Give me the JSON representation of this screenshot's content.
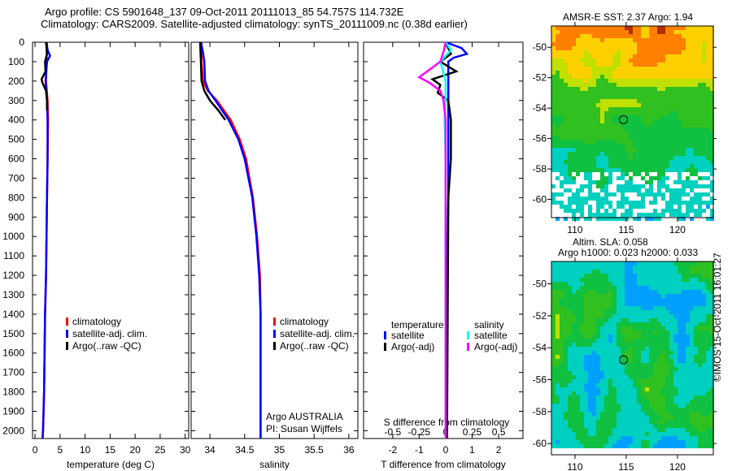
{
  "header": {
    "line1": "Argo profile: CS 5901648_137 09-Oct-2011 20111013_85 54.757S 114.732E",
    "line2": "Climatology: CARS2009. Satellite-adjusted climatology: synTS_20111009.nc (0.38d earlier)"
  },
  "colors": {
    "climatology": "#ff0000",
    "satellite": "#0000ff",
    "argo": "#000000",
    "sal_satellite": "#00ffff",
    "sal_argo": "#ff00ff"
  },
  "chart_data": [
    {
      "type": "line",
      "title": "",
      "xlabel": "temperature (deg C)",
      "ylabel": "",
      "xlim": [
        -0.5,
        30.7
      ],
      "ylim": [
        2040,
        0
      ],
      "xticks": [
        0,
        5,
        10,
        15,
        20,
        25,
        30
      ],
      "yticks": [
        0,
        100,
        200,
        300,
        400,
        500,
        600,
        700,
        800,
        900,
        1000,
        1100,
        1200,
        1300,
        1400,
        1500,
        1600,
        1700,
        1800,
        1900,
        2000
      ],
      "legend": [
        "climatology",
        "satellite-adj. clim.",
        "Argo(..raw -QC)"
      ],
      "legend_placement": "center-right",
      "series": [
        {
          "name": "climatology",
          "depth": [
            0,
            100,
            200,
            300,
            400,
            600,
            800,
            1000,
            1200,
            1400,
            1600,
            1800,
            2000,
            2040
          ],
          "values": [
            2.4,
            2.3,
            2.2,
            2.5,
            2.6,
            2.5,
            2.4,
            2.3,
            2.2,
            2.0,
            1.9,
            1.8,
            1.6,
            1.5
          ]
        },
        {
          "name": "satellite-adj. clim.",
          "depth": [
            0,
            40,
            70,
            100,
            200,
            300,
            400,
            600,
            800,
            1000,
            1200,
            1400,
            1600,
            1800,
            2000,
            2040
          ],
          "values": [
            2.3,
            2.5,
            3.0,
            2.4,
            2.1,
            2.4,
            2.5,
            2.5,
            2.4,
            2.3,
            2.2,
            2.0,
            1.9,
            1.8,
            1.6,
            1.5
          ]
        },
        {
          "name": "Argo(..raw -QC)",
          "depth": [
            0,
            60,
            100,
            150,
            190,
            210,
            250,
            300,
            350
          ],
          "values": [
            2.2,
            2.4,
            2.0,
            2.1,
            1.3,
            1.5,
            2.2,
            2.4,
            2.4
          ]
        }
      ]
    },
    {
      "type": "line",
      "xlabel": "salinity",
      "xlim": [
        33.73,
        36.13
      ],
      "ylim": [
        2040,
        0
      ],
      "xticks": [
        34,
        34.5,
        35,
        35.5,
        36
      ],
      "legend": [
        "climatology",
        "satellite-adj. clim.",
        "Argo(..raw -QC)"
      ],
      "legend_placement": "center-right",
      "annotation": {
        "line1": "Argo AUSTRALIA",
        "line2": "PI: Susan Wijffels"
      },
      "series": [
        {
          "name": "climatology",
          "depth": [
            0,
            100,
            200,
            250,
            300,
            400,
            500,
            600,
            800,
            1000,
            1200,
            1400,
            2040
          ],
          "values": [
            33.88,
            33.88,
            33.9,
            33.97,
            34.1,
            34.3,
            34.43,
            34.52,
            34.62,
            34.68,
            34.72,
            34.73,
            34.73
          ]
        },
        {
          "name": "satellite-adj. clim.",
          "depth": [
            0,
            50,
            100,
            200,
            250,
            300,
            400,
            500,
            600,
            800,
            1000,
            1200,
            1400,
            2040
          ],
          "values": [
            33.87,
            33.9,
            33.92,
            33.93,
            33.98,
            34.08,
            34.27,
            34.41,
            34.5,
            34.61,
            34.67,
            34.71,
            34.73,
            34.73
          ]
        },
        {
          "name": "Argo(..raw -QC)",
          "depth": [
            0,
            100,
            200,
            250,
            300,
            350,
            400
          ],
          "values": [
            33.86,
            33.87,
            33.88,
            33.92,
            34.0,
            34.12,
            34.22
          ]
        }
      ]
    },
    {
      "type": "line",
      "xlabel": "T difference from climatology",
      "x2label": "S difference from climatology",
      "xlim": [
        -3.1,
        2.92
      ],
      "x2lim": [
        -0.775,
        0.73
      ],
      "ylim": [
        2040,
        0
      ],
      "xticks": [
        -2,
        -1,
        0,
        1,
        2
      ],
      "x2ticks": [
        -0.5,
        -0.25,
        0,
        0.25,
        0.5
      ],
      "legend_groups": [
        {
          "title": "temperature",
          "items": [
            "satellite",
            "Argo(-adj)"
          ]
        },
        {
          "title": "salinity",
          "items": [
            "satellite",
            "Argo(-adj)"
          ]
        }
      ],
      "series": [
        {
          "name": "T satellite",
          "depth": [
            0,
            30,
            60,
            80,
            100,
            150,
            200,
            300,
            500,
            800,
            1200,
            2040
          ],
          "values": [
            0,
            0.6,
            0.8,
            0.3,
            0.1,
            0.1,
            0.1,
            0.1,
            0.1,
            0.1,
            0.05,
            0.05
          ]
        },
        {
          "name": "T Argo(-adj)",
          "depth": [
            0,
            60,
            100,
            150,
            190,
            220,
            260,
            300,
            400,
            600,
            800,
            2040
          ],
          "values": [
            0,
            0.2,
            -0.2,
            0.4,
            -0.5,
            -0.2,
            -0.3,
            0.1,
            0.2,
            0.2,
            0.1,
            0.05
          ]
        },
        {
          "name": "S satellite",
          "depth": [
            0,
            40,
            100,
            200,
            300,
            400,
            600,
            1000,
            2040
          ],
          "values": [
            0,
            0.05,
            -0.05,
            0.0,
            0.0,
            -0.01,
            0.0,
            0.0,
            0.0
          ]
        },
        {
          "name": "S Argo(-adj)",
          "depth": [
            0,
            50,
            100,
            180,
            210,
            250,
            300,
            400,
            600,
            1000,
            2040
          ],
          "values": [
            0,
            -0.02,
            -0.05,
            -0.25,
            -0.15,
            -0.05,
            -0.02,
            0.0,
            0.0,
            0.0,
            0.0
          ]
        }
      ]
    }
  ],
  "maps": [
    {
      "title": "AMSR-E SST: 2.37 Argo: 1.94",
      "xticks": [
        110,
        115,
        120
      ],
      "yticks": [
        -50,
        -52,
        -54,
        -56,
        -58,
        -60
      ],
      "lon": [
        107.7,
        123.5
      ],
      "lat": [
        -48.6,
        -61.2
      ],
      "marker": [
        114.732,
        -54.757
      ]
    },
    {
      "title1": "Altim. SLA: 0.058",
      "title2": "Argo h1000: 0.023 h2000: 0.033",
      "xticks": [
        110,
        115,
        120
      ],
      "yticks": [
        -50,
        -52,
        -54,
        -56,
        -58,
        -60
      ],
      "lon": [
        107.7,
        123.5
      ],
      "lat": [
        -48.6,
        -60.7
      ],
      "marker": [
        114.732,
        -54.757
      ]
    }
  ],
  "credit": "©IMOS 15-Oct-2011 16:01:27"
}
